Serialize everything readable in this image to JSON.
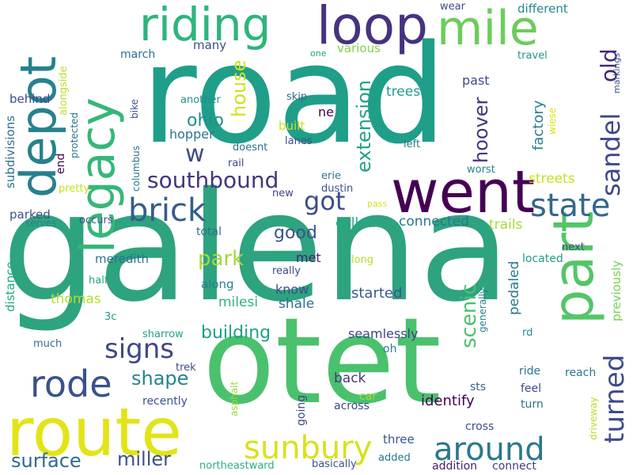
{
  "palette": {
    "purple": "#440154",
    "indigo": "#46327e",
    "slate": "#365c8d",
    "teal_blue": "#277f8e",
    "teal": "#1fa187",
    "green": "#4ac16d",
    "lime": "#a0da39",
    "yellow": "#e2e418"
  },
  "words": [
    "galena",
    "road",
    "otet",
    "route",
    "went",
    "part",
    "loop",
    "depot",
    "legacy",
    "mile",
    "riding",
    "sunbury",
    "rode",
    "brick",
    "around",
    "state",
    "turned",
    "signs",
    "sandel",
    "got",
    "southbound",
    "old",
    "surface",
    "miller",
    "shape",
    "scenic",
    "extension",
    "hoover",
    "house",
    "park",
    "ohio",
    "good",
    "building",
    "w",
    "connected",
    "factory",
    "trails",
    "identify",
    "streets",
    "started",
    "shale",
    "pedaled",
    "called",
    "trees",
    "back",
    "subdivisions",
    "distance",
    "previously",
    "alongside",
    "met",
    "milesi",
    "thomas",
    "know",
    "seamlessly",
    "march",
    "hopper",
    "many",
    "various",
    "built",
    "along",
    "meredith",
    "parked",
    "behind",
    "different",
    "three",
    "connect",
    "addition",
    "northeastward",
    "basically",
    "added",
    "across",
    "recently",
    "going",
    "cross",
    "sts",
    "feel",
    "turn",
    "ride",
    "reach",
    "car",
    "trek",
    "sharrow",
    "asphalt",
    "driveway",
    "rd",
    "generally",
    "oh",
    "located",
    "really",
    "long",
    "next",
    "total",
    "serves",
    "occurs",
    "half",
    "3c",
    "much",
    "pretty",
    "columbus",
    "end",
    "protected",
    "bike",
    "skip",
    "another",
    "lanes",
    "doesnt",
    "rail",
    "left",
    "worst",
    "erie",
    "dustin",
    "new",
    "pass",
    "past",
    "travel",
    "wear",
    "one",
    "markings",
    "wiese",
    "ne"
  ]
}
